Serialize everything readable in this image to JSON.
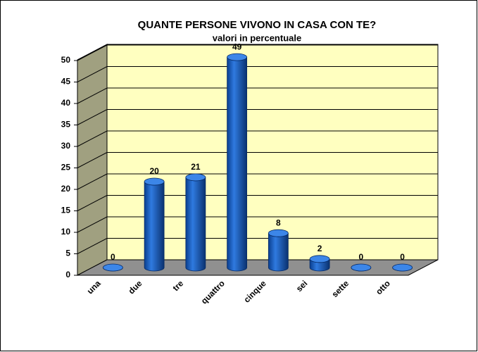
{
  "chart_data": {
    "type": "bar3d",
    "title": "QUANTE PERSONE VIVONO IN CASA CON TE?",
    "subtitle": "valori in percentuale",
    "categories": [
      "una",
      "due",
      "tre",
      "quattro",
      "cinque",
      "sei",
      "sette",
      "otto"
    ],
    "values": [
      0,
      20,
      21,
      49,
      8,
      2,
      0,
      0
    ],
    "color": "#1f5fc0",
    "ylim": [
      0,
      50
    ],
    "yticks": [
      0,
      5,
      10,
      15,
      20,
      25,
      30,
      35,
      40,
      45,
      50
    ],
    "grid": true
  }
}
